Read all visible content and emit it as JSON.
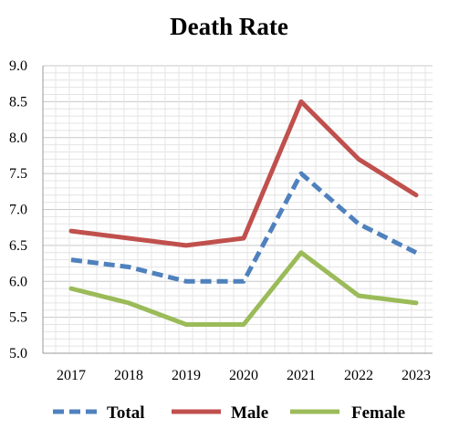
{
  "chart_data": {
    "type": "line",
    "title": "Death Rate",
    "xlabel": "",
    "ylabel": "",
    "categories": [
      "2017",
      "2018",
      "2019",
      "2020",
      "2021",
      "2022",
      "2023"
    ],
    "ylim": [
      5.0,
      9.0
    ],
    "yticks": [
      "5.0",
      "5.5",
      "6.0",
      "6.5",
      "7.0",
      "7.5",
      "8.0",
      "8.5",
      "9.0"
    ],
    "grid": true,
    "legend_position": "bottom",
    "series": [
      {
        "name": "Total",
        "values": [
          6.3,
          6.2,
          6.0,
          6.0,
          7.5,
          6.8,
          6.4
        ],
        "color": "#4f81bd",
        "style": "dashed"
      },
      {
        "name": "Male",
        "values": [
          6.7,
          6.6,
          6.5,
          6.6,
          8.5,
          7.7,
          7.2
        ],
        "color": "#c0504d",
        "style": "solid"
      },
      {
        "name": "Female",
        "values": [
          5.9,
          5.7,
          5.4,
          5.4,
          6.4,
          5.8,
          5.7
        ],
        "color": "#9bbb59",
        "style": "solid"
      }
    ]
  }
}
